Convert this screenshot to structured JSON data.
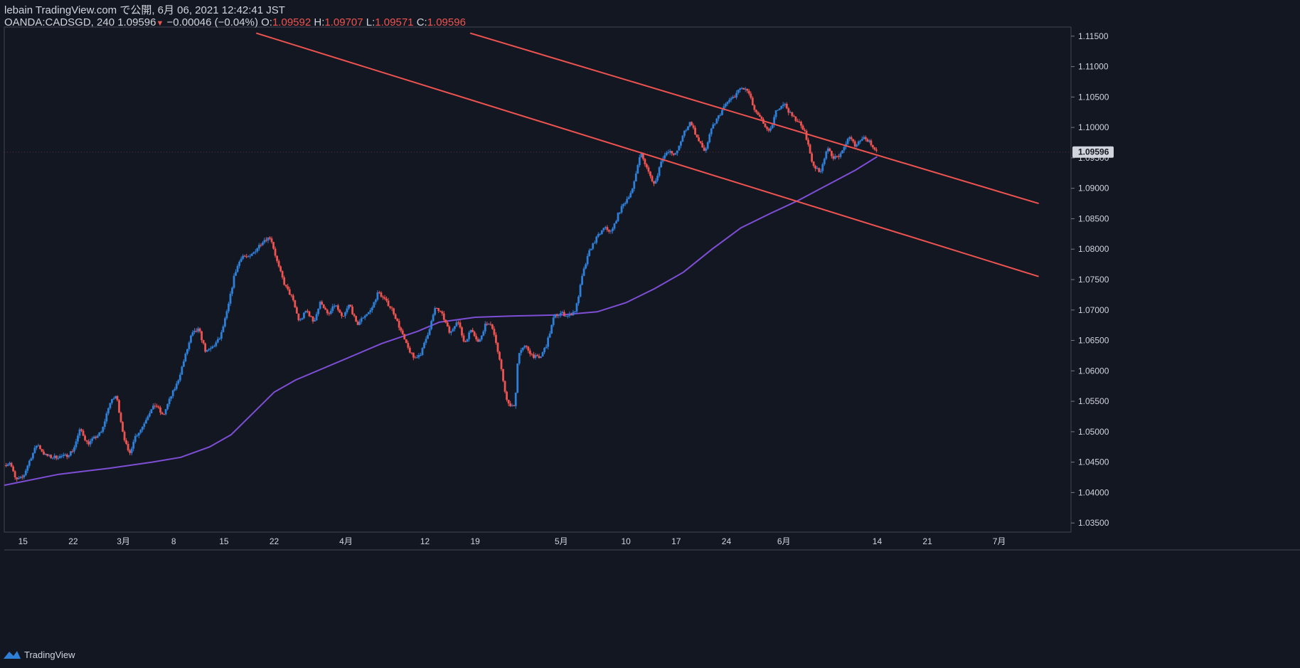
{
  "header": {
    "publish_line": "lebain TradingView.com で公開, 6月 06, 2021 12:42:41 JST",
    "symbol": "OANDA:CADSGD, 240",
    "last": "1.09596",
    "change": "−0.00046 (−0.04%)",
    "o_label": "O:",
    "o": "1.09592",
    "h_label": "H:",
    "h": "1.09707",
    "l_label": "L:",
    "l": "1.09571",
    "c_label": "C:",
    "c": "1.09596"
  },
  "footer": {
    "brand": "TradingView",
    "icon": "tradingview-logo-icon"
  },
  "colors": {
    "background": "#131722",
    "up": "#2e7fd8",
    "down": "#ef5350",
    "trendline": "#ef5350",
    "moving_average": "#7e4fd6",
    "axis_text": "#d1d4dc",
    "price_label_bg": "#d1d4dc"
  },
  "chart_data": {
    "type": "candlestick",
    "ylim": [
      1.0335,
      1.1165
    ],
    "y_ticks": [
      "1.11500",
      "1.11000",
      "1.10500",
      "1.10000",
      "1.09500",
      "1.09000",
      "1.08500",
      "1.08000",
      "1.07500",
      "1.07000",
      "1.06500",
      "1.06000",
      "1.05500",
      "1.05000",
      "1.04500",
      "1.04000",
      "1.03500"
    ],
    "last_price_label": "1.09596",
    "x_ticks": [
      {
        "label": "15",
        "day": 0
      },
      {
        "label": "22",
        "day": 7
      },
      {
        "label": "3月",
        "day": 14
      },
      {
        "label": "8",
        "day": 21
      },
      {
        "label": "15",
        "day": 28
      },
      {
        "label": "22",
        "day": 35
      },
      {
        "label": "4月",
        "day": 45
      },
      {
        "label": "12",
        "day": 56
      },
      {
        "label": "19",
        "day": 63
      },
      {
        "label": "5月",
        "day": 75
      },
      {
        "label": "10",
        "day": 84
      },
      {
        "label": "17",
        "day": 91
      },
      {
        "label": "24",
        "day": 98
      },
      {
        "label": "6月",
        "day": 106
      },
      {
        "label": "14",
        "day": 119
      },
      {
        "label": "21",
        "day": 126
      },
      {
        "label": "7月",
        "day": 136
      }
    ],
    "x_range_days": [
      -2.6,
      146
    ],
    "price_path": [
      [
        -2.6,
        1.0445
      ],
      [
        -1.8,
        1.045
      ],
      [
        -1,
        1.042
      ],
      [
        0,
        1.0425
      ],
      [
        1,
        1.0455
      ],
      [
        2,
        1.048
      ],
      [
        3,
        1.0462
      ],
      [
        4,
        1.0458
      ],
      [
        6,
        1.046
      ],
      [
        7,
        1.047
      ],
      [
        8,
        1.0505
      ],
      [
        9,
        1.048
      ],
      [
        10,
        1.049
      ],
      [
        11,
        1.05
      ],
      [
        12,
        1.0545
      ],
      [
        13,
        1.056
      ],
      [
        14,
        1.0495
      ],
      [
        14.8,
        1.046
      ],
      [
        15.5,
        1.049
      ],
      [
        16.5,
        1.0505
      ],
      [
        17.5,
        1.053
      ],
      [
        18.5,
        1.0545
      ],
      [
        19.5,
        1.0525
      ],
      [
        20.5,
        1.0555
      ],
      [
        21.5,
        1.058
      ],
      [
        22.5,
        1.062
      ],
      [
        23.5,
        1.066
      ],
      [
        24.5,
        1.0668
      ],
      [
        25.5,
        1.063
      ],
      [
        26.5,
        1.064
      ],
      [
        27.5,
        1.0655
      ],
      [
        28.5,
        1.07
      ],
      [
        29.5,
        1.076
      ],
      [
        30.5,
        1.079
      ],
      [
        31.5,
        1.0785
      ],
      [
        32.5,
        1.08
      ],
      [
        33.5,
        1.0815
      ],
      [
        34.5,
        1.082
      ],
      [
        35.5,
        1.0775
      ],
      [
        36.5,
        1.074
      ],
      [
        37.5,
        1.072
      ],
      [
        38.5,
        1.068
      ],
      [
        39.5,
        1.07
      ],
      [
        40.5,
        1.068
      ],
      [
        41.5,
        1.0715
      ],
      [
        42.5,
        1.069
      ],
      [
        43.5,
        1.071
      ],
      [
        44.5,
        1.0685
      ],
      [
        45.5,
        1.071
      ],
      [
        46.5,
        1.0675
      ],
      [
        47.5,
        1.069
      ],
      [
        48.5,
        1.07
      ],
      [
        49.5,
        1.073
      ],
      [
        50.5,
        1.0715
      ],
      [
        51.5,
        1.07
      ],
      [
        52.5,
        1.067
      ],
      [
        53.5,
        1.064
      ],
      [
        54.5,
        1.062
      ],
      [
        55.5,
        1.063
      ],
      [
        56.5,
        1.0665
      ],
      [
        57.5,
        1.0705
      ],
      [
        58.5,
        1.069
      ],
      [
        59.5,
        1.066
      ],
      [
        60.5,
        1.0685
      ],
      [
        61.5,
        1.0645
      ],
      [
        62.5,
        1.067
      ],
      [
        63.5,
        1.0645
      ],
      [
        64.5,
        1.068
      ],
      [
        65.5,
        1.067
      ],
      [
        66.5,
        1.061
      ],
      [
        67.5,
        1.0545
      ],
      [
        68.5,
        1.054
      ],
      [
        69,
        1.063
      ],
      [
        70,
        1.064
      ],
      [
        71,
        1.0625
      ],
      [
        72,
        1.062
      ],
      [
        73,
        1.0645
      ],
      [
        74,
        1.069
      ],
      [
        75,
        1.0695
      ],
      [
        76,
        1.069
      ],
      [
        77,
        1.07
      ],
      [
        78,
        1.076
      ],
      [
        79,
        1.08
      ],
      [
        80,
        1.082
      ],
      [
        81,
        1.0835
      ],
      [
        82,
        1.0828
      ],
      [
        83,
        1.086
      ],
      [
        84,
        1.088
      ],
      [
        85,
        1.09
      ],
      [
        86,
        1.096
      ],
      [
        87,
        1.093
      ],
      [
        88,
        1.0905
      ],
      [
        89,
        1.095
      ],
      [
        90,
        1.096
      ],
      [
        91,
        1.0955
      ],
      [
        92,
        1.099
      ],
      [
        93,
        1.101
      ],
      [
        94,
        1.098
      ],
      [
        95,
        1.096
      ],
      [
        96,
        1.1
      ],
      [
        97,
        1.102
      ],
      [
        98,
        1.104
      ],
      [
        99,
        1.105
      ],
      [
        100,
        1.1065
      ],
      [
        101,
        1.106
      ],
      [
        102,
        1.1025
      ],
      [
        103,
        1.101
      ],
      [
        104,
        1.099
      ],
      [
        105,
        1.103
      ],
      [
        106,
        1.104
      ],
      [
        107,
        1.102
      ],
      [
        108,
        1.101
      ],
      [
        109,
        1.099
      ],
      [
        110,
        1.094
      ],
      [
        111,
        1.0925
      ],
      [
        112,
        1.0965
      ],
      [
        113,
        1.095
      ],
      [
        114,
        1.0955
      ],
      [
        115,
        1.0985
      ],
      [
        116,
        1.097
      ],
      [
        117,
        1.0985
      ],
      [
        118,
        1.0975
      ],
      [
        119,
        1.096
      ]
    ],
    "trendlines": [
      {
        "name": "upper channel line",
        "points": [
          [
            62.3,
            1.1155
          ],
          [
            141.5,
            1.0875
          ]
        ]
      },
      {
        "name": "lower channel line",
        "points": [
          [
            32.5,
            1.1155
          ],
          [
            141.5,
            1.0755
          ]
        ]
      }
    ],
    "moving_average": [
      [
        -2.6,
        1.0412
      ],
      [
        5,
        1.043
      ],
      [
        12,
        1.044
      ],
      [
        18,
        1.045
      ],
      [
        22,
        1.0458
      ],
      [
        26,
        1.0475
      ],
      [
        29,
        1.0495
      ],
      [
        32,
        1.053
      ],
      [
        35,
        1.0565
      ],
      [
        38,
        1.0585
      ],
      [
        44,
        1.0615
      ],
      [
        50,
        1.0645
      ],
      [
        55,
        1.0665
      ],
      [
        58,
        1.068
      ],
      [
        63,
        1.0688
      ],
      [
        68,
        1.069
      ],
      [
        75,
        1.0692
      ],
      [
        80,
        1.0697
      ],
      [
        84,
        1.0712
      ],
      [
        88,
        1.0735
      ],
      [
        92,
        1.0762
      ],
      [
        96,
        1.08
      ],
      [
        100,
        1.0835
      ],
      [
        104,
        1.0858
      ],
      [
        108,
        1.088
      ],
      [
        112,
        1.0905
      ],
      [
        116,
        1.093
      ],
      [
        119,
        1.0952
      ]
    ]
  }
}
